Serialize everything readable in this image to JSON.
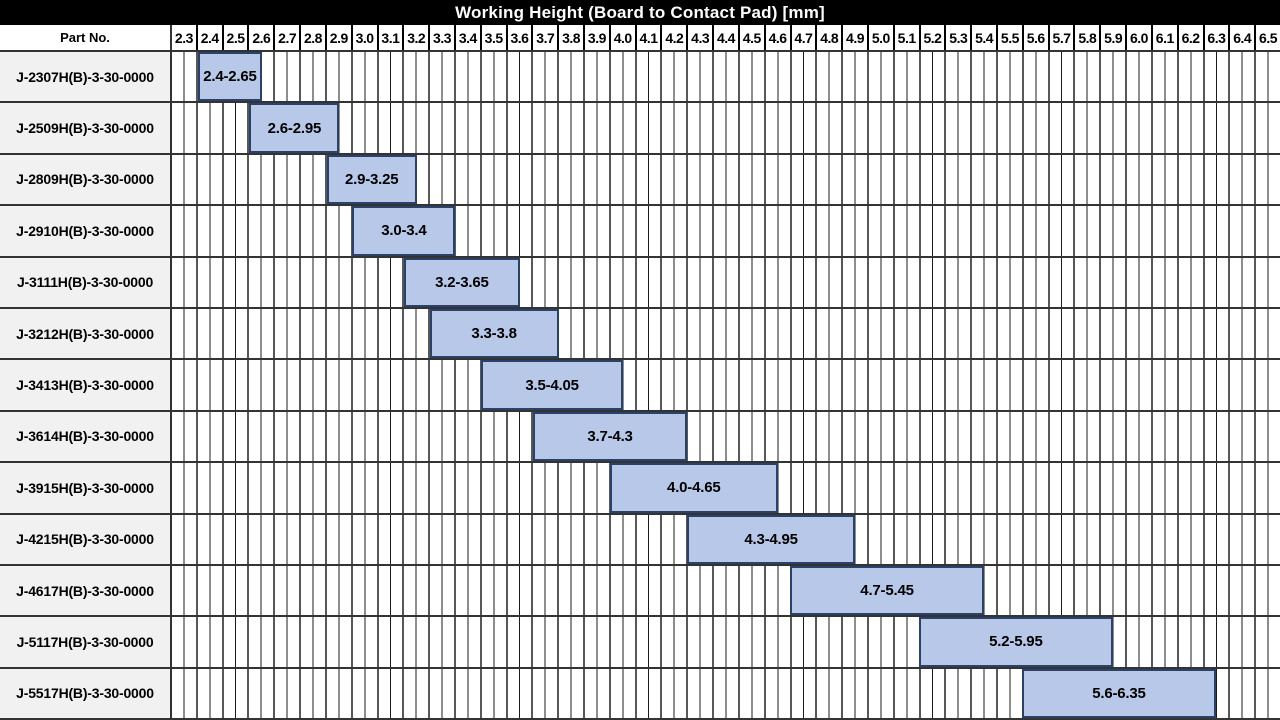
{
  "chart_data": {
    "type": "bar",
    "subtype": "horizontal-range",
    "title": "Working Height (Board to Contact Pad) [mm]",
    "ylabel": "Part No.",
    "xlim": [
      2.3,
      6.6
    ],
    "xtick_step": 0.1,
    "minor_grid_step": 0.05,
    "grid": "on",
    "xticks": [
      "2.3",
      "2.4",
      "2.5",
      "2.6",
      "2.7",
      "2.8",
      "2.9",
      "3.0",
      "3.1",
      "3.2",
      "3.3",
      "3.4",
      "3.5",
      "3.6",
      "3.7",
      "3.8",
      "3.9",
      "4.0",
      "4.1",
      "4.2",
      "4.3",
      "4.4",
      "4.5",
      "4.6",
      "4.7",
      "4.8",
      "4.9",
      "5.0",
      "5.1",
      "5.2",
      "5.3",
      "5.4",
      "5.5",
      "5.6",
      "5.7",
      "5.8",
      "5.9",
      "6.0",
      "6.1",
      "6.2",
      "6.3",
      "6.4",
      "6.5"
    ],
    "rows": [
      {
        "part": "J-2307H(B)-3-30-0000",
        "start": 2.4,
        "end": 2.65,
        "label": "2.4-2.65"
      },
      {
        "part": "J-2509H(B)-3-30-0000",
        "start": 2.6,
        "end": 2.95,
        "label": "2.6-2.95"
      },
      {
        "part": "J-2809H(B)-3-30-0000",
        "start": 2.9,
        "end": 3.25,
        "label": "2.9-3.25"
      },
      {
        "part": "J-2910H(B)-3-30-0000",
        "start": 3.0,
        "end": 3.4,
        "label": "3.0-3.4"
      },
      {
        "part": "J-3111H(B)-3-30-0000",
        "start": 3.2,
        "end": 3.65,
        "label": "3.2-3.65"
      },
      {
        "part": "J-3212H(B)-3-30-0000",
        "start": 3.3,
        "end": 3.8,
        "label": "3.3-3.8"
      },
      {
        "part": "J-3413H(B)-3-30-0000",
        "start": 3.5,
        "end": 4.05,
        "label": "3.5-4.05"
      },
      {
        "part": "J-3614H(B)-3-30-0000",
        "start": 3.7,
        "end": 4.3,
        "label": "3.7-4.3"
      },
      {
        "part": "J-3915H(B)-3-30-0000",
        "start": 4.0,
        "end": 4.65,
        "label": "4.0-4.65"
      },
      {
        "part": "J-4215H(B)-3-30-0000",
        "start": 4.3,
        "end": 4.95,
        "label": "4.3-4.95"
      },
      {
        "part": "J-4617H(B)-3-30-0000",
        "start": 4.7,
        "end": 5.45,
        "label": "4.7-5.45"
      },
      {
        "part": "J-5117H(B)-3-30-0000",
        "start": 5.2,
        "end": 5.95,
        "label": "5.2-5.95"
      },
      {
        "part": "J-5517H(B)-3-30-0000",
        "start": 5.6,
        "end": 6.35,
        "label": "5.6-6.35"
      }
    ]
  },
  "colors": {
    "title_bg": "#000000",
    "title_text": "#ffffff",
    "bar_fill": "#b7c8e8",
    "bar_border": "#2c4168",
    "grid_major": "#585858",
    "grid_minor": "#1c1c1c",
    "row_separator": "#333333",
    "part_cell_bg": "#f1f1f1"
  }
}
